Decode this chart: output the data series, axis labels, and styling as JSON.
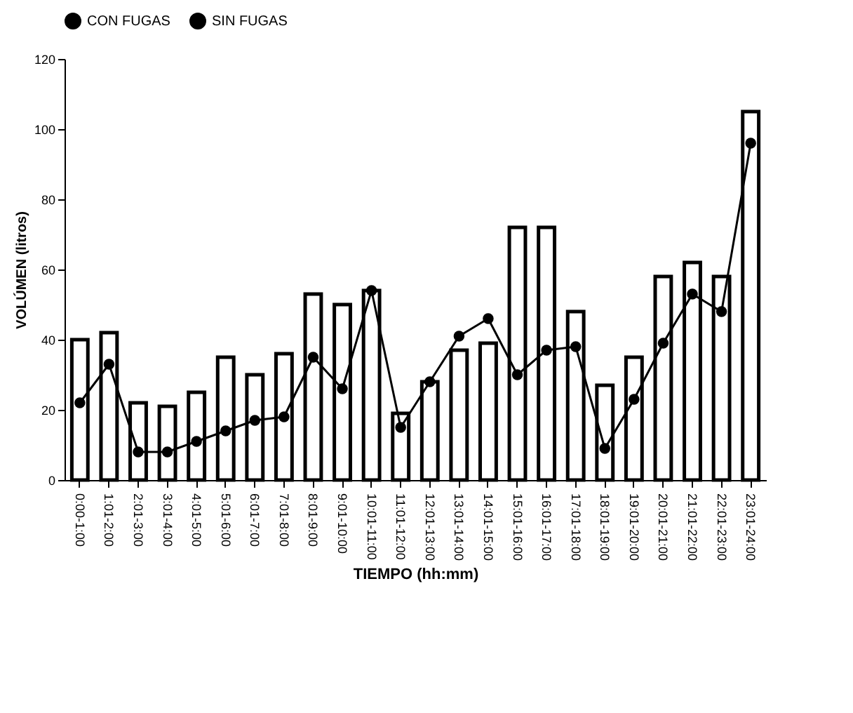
{
  "chart_data": {
    "type": "bar",
    "xlabel": "TIEMPO (hh:mm)",
    "ylabel": "VOLÚMEN (litros)",
    "categories": [
      "0:00-1:00",
      "1:01-2:00",
      "2:01-3:00",
      "3:01-4:00",
      "4:01-5:00",
      "5:01-6:00",
      "6:01-7:00",
      "7:01-8:00",
      "8:01-9:00",
      "9:01-10:00",
      "10:01-11:00",
      "11:01-12:00",
      "12:01-13:00",
      "13:01-14:00",
      "14:01-15:00",
      "15:01-16:00",
      "16:01-17:00",
      "17:01-18:00",
      "18:01-19:00",
      "19:01-20:00",
      "20:01-21:00",
      "21:01-22:00",
      "22:01-23:00",
      "23:01-24:00"
    ],
    "series": [
      {
        "name": "CON FUGAS",
        "color": "#000000",
        "values": [
          40,
          42,
          22,
          21,
          25,
          35,
          30,
          36,
          53,
          50,
          54,
          19,
          28,
          37,
          39,
          72,
          72,
          48,
          27,
          35,
          58,
          62,
          58,
          105
        ]
      },
      {
        "name": "SIN FUGAS",
        "type": "line",
        "color": "#000000",
        "values": [
          22,
          33,
          8,
          8,
          11,
          14,
          17,
          18,
          35,
          26,
          54,
          15,
          28,
          41,
          46,
          30,
          37,
          38,
          9,
          23,
          39,
          53,
          48,
          96
        ]
      }
    ],
    "ylim": [
      0,
      120
    ],
    "yticks": [
      0,
      20,
      40,
      60,
      80,
      100,
      120
    ],
    "grid": false,
    "legend": "top",
    "marker": "circle",
    "line_style": "solid"
  }
}
